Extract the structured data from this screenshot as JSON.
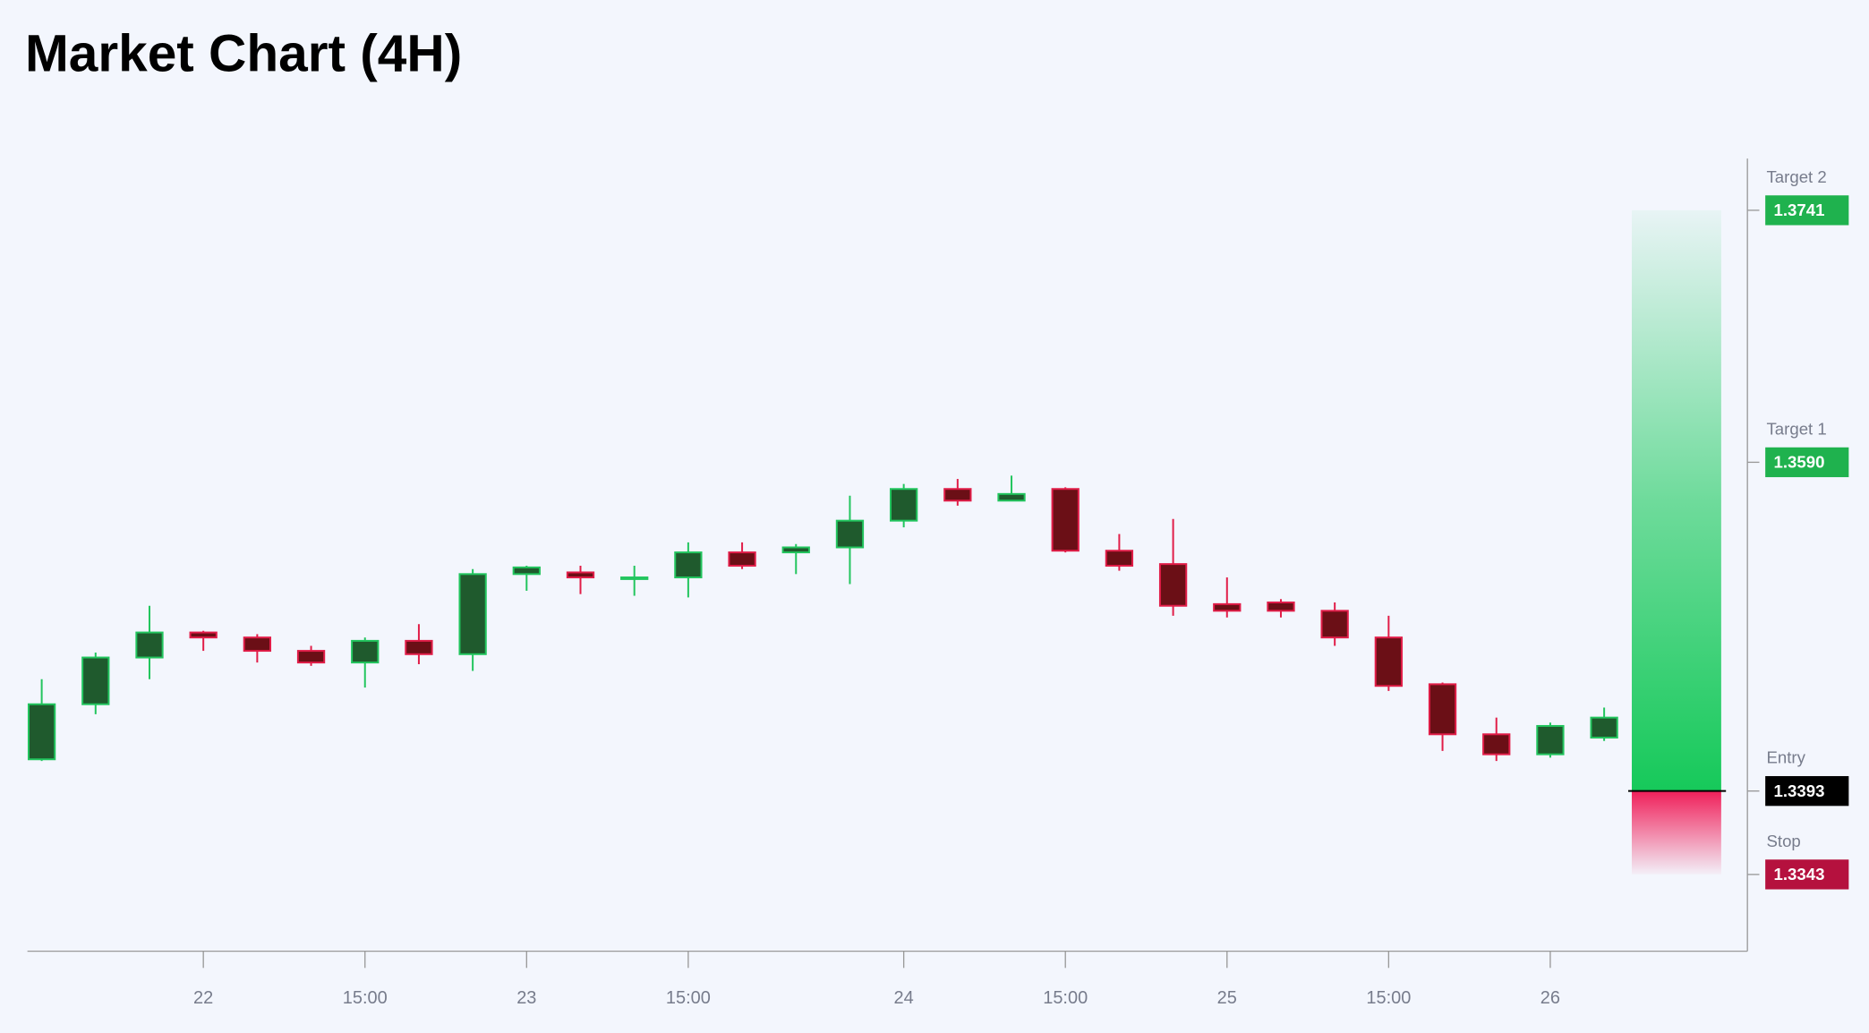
{
  "chart_data": {
    "type": "candlestick",
    "title": "Market Chart (4H)",
    "categories": [
      null,
      null,
      null,
      "22",
      null,
      null,
      "15:00",
      null,
      null,
      "23",
      null,
      null,
      "15:00",
      null,
      null,
      null,
      "24",
      null,
      null,
      "15:00",
      null,
      null,
      "25",
      null,
      null,
      "15:00",
      null,
      null,
      "26",
      null
    ],
    "open": [
      1.3412,
      1.3445,
      1.3473,
      1.3488,
      1.3485,
      1.3477,
      1.347,
      1.3483,
      1.3475,
      1.3523,
      1.3524,
      1.352,
      1.3521,
      1.3536,
      1.3536,
      1.3539,
      1.3555,
      1.3574,
      1.3567,
      1.3574,
      1.3537,
      1.3529,
      1.3505,
      1.3506,
      1.3501,
      1.3485,
      1.3457,
      1.3427,
      1.3415,
      1.3425
    ],
    "high": [
      1.346,
      1.3476,
      1.3504,
      1.3489,
      1.3487,
      1.348,
      1.3485,
      1.3493,
      1.3526,
      1.3528,
      1.3528,
      1.3528,
      1.3542,
      1.3542,
      1.3541,
      1.357,
      1.3577,
      1.358,
      1.3582,
      1.3575,
      1.3547,
      1.3556,
      1.3521,
      1.3508,
      1.3506,
      1.3498,
      1.3458,
      1.3437,
      1.3434,
      1.3443
    ],
    "low": [
      1.3411,
      1.3439,
      1.346,
      1.3477,
      1.347,
      1.3468,
      1.3455,
      1.3469,
      1.3465,
      1.3513,
      1.3511,
      1.351,
      1.3509,
      1.3526,
      1.3523,
      1.3517,
      1.3551,
      1.3564,
      1.3567,
      1.3536,
      1.3525,
      1.3498,
      1.3497,
      1.3497,
      1.348,
      1.3453,
      1.3417,
      1.3411,
      1.3413,
      1.3423
    ],
    "close": [
      1.3445,
      1.3473,
      1.3488,
      1.3485,
      1.3477,
      1.347,
      1.3483,
      1.3475,
      1.3523,
      1.3527,
      1.3521,
      1.3521,
      1.3536,
      1.3528,
      1.3539,
      1.3555,
      1.3574,
      1.3567,
      1.3571,
      1.3537,
      1.3528,
      1.3504,
      1.3501,
      1.3501,
      1.3485,
      1.3456,
      1.3427,
      1.3415,
      1.3432,
      1.3437
    ],
    "up_color": "#22c55e",
    "up_fill": "#1f5a2d",
    "down_color": "#e11d48",
    "down_fill": "#6b0f16",
    "ylim": [
      1.3297,
      1.3772
    ],
    "levels": {
      "names": [
        "Target 2",
        "Target 1",
        "Entry",
        "Stop"
      ],
      "values": [
        1.3741,
        1.359,
        1.3393,
        1.3343
      ],
      "value_labels": [
        "1.3741",
        "1.3590",
        "1.3393",
        "1.3343"
      ],
      "colors": [
        "#1fb24e",
        "#1fb24e",
        "#000000",
        "#b5113e"
      ]
    }
  }
}
